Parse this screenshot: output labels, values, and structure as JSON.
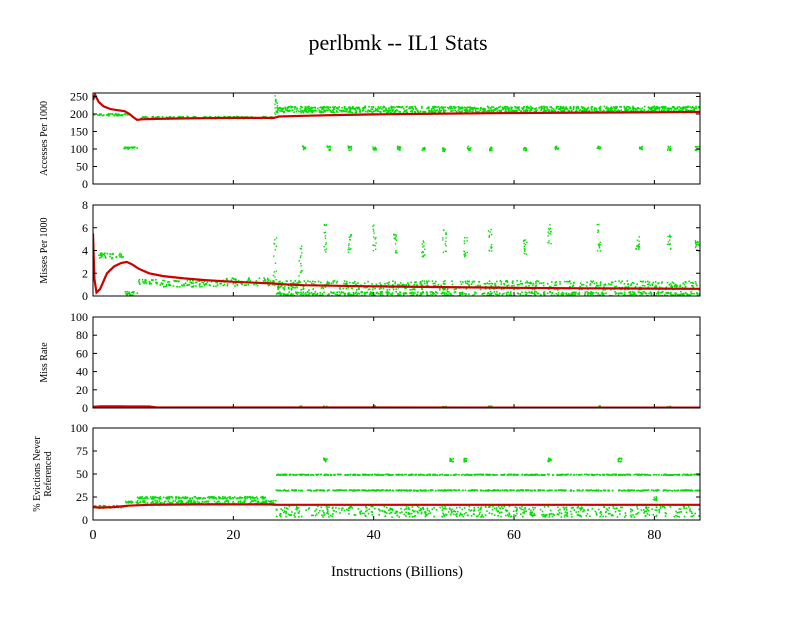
{
  "chart_data": {
    "type": "scatter",
    "title": "perlbmk -- IL1  Stats",
    "xlabel": "Instructions (Billions)",
    "x_ticks": [
      "0",
      "20",
      "40",
      "60",
      "80"
    ],
    "x_tick_values": [
      0,
      20,
      40,
      60,
      80
    ],
    "xlim": [
      0,
      86.5
    ],
    "colors": {
      "scatter": "#00dd00",
      "average": "#cc0000",
      "axis": "#000000"
    },
    "panels": [
      {
        "ylabel_lines": [
          "Accesses Per 1000"
        ],
        "ylim": [
          0,
          260
        ],
        "y_ticks": [
          0,
          50,
          100,
          150,
          200,
          250
        ],
        "y_tick_labels": [
          "0",
          "50",
          "100",
          "150",
          "200",
          "250"
        ],
        "scatter_segments": [
          {
            "x0": 0,
            "x1": 5,
            "y": 200,
            "spread": 3
          },
          {
            "x0": 4.3,
            "x1": 6.2,
            "y": 105,
            "spread": 3
          },
          {
            "x0": 6.5,
            "x1": 25.8,
            "y": 192,
            "spread": 3
          },
          {
            "x0": 26,
            "x1": 86.5,
            "y": 220,
            "spread": 4
          },
          {
            "x0": 26,
            "x1": 86.5,
            "y": 210,
            "spread": 4
          }
        ],
        "scatter_spikes": [
          {
            "x": 30,
            "y0": 100,
            "y1": 115
          },
          {
            "x": 33.5,
            "y0": 98,
            "y1": 110
          },
          {
            "x": 36.5,
            "y0": 98,
            "y1": 110
          },
          {
            "x": 40,
            "y0": 98,
            "y1": 108
          },
          {
            "x": 43.5,
            "y0": 96,
            "y1": 110
          },
          {
            "x": 47,
            "y0": 98,
            "y1": 108
          },
          {
            "x": 50,
            "y0": 95,
            "y1": 105
          },
          {
            "x": 53.5,
            "y0": 98,
            "y1": 110
          },
          {
            "x": 56.5,
            "y0": 96,
            "y1": 108
          },
          {
            "x": 61.5,
            "y0": 96,
            "y1": 108
          },
          {
            "x": 66,
            "y0": 98,
            "y1": 110
          },
          {
            "x": 72,
            "y0": 98,
            "y1": 110
          },
          {
            "x": 78,
            "y0": 100,
            "y1": 110
          },
          {
            "x": 82,
            "y0": 98,
            "y1": 110
          },
          {
            "x": 86,
            "y0": 98,
            "y1": 110
          },
          {
            "x": 26,
            "y0": 195,
            "y1": 255
          }
        ],
        "average": {
          "x": [
            0,
            0.3,
            0.8,
            1.5,
            2.5,
            3.5,
            4.5,
            5.2,
            5.8,
            6.3,
            7,
            9,
            12,
            16,
            20,
            25.8,
            26.5,
            30,
            35,
            40,
            50,
            60,
            70,
            80,
            86.5
          ],
          "y": [
            240,
            255,
            235,
            222,
            214,
            211,
            208,
            200,
            190,
            183,
            185,
            186,
            187,
            188,
            189,
            189,
            193,
            195,
            197,
            199,
            201,
            203,
            204,
            205,
            206
          ]
        }
      },
      {
        "ylabel_lines": [
          "Misses Per 1000"
        ],
        "ylim": [
          0,
          8
        ],
        "y_ticks": [
          0,
          2,
          4,
          6,
          8
        ],
        "y_tick_labels": [
          "0",
          "2",
          "4",
          "6",
          "8"
        ],
        "scatter_segments": [
          {
            "x0": 0.5,
            "x1": 4.3,
            "y": 3.6,
            "spread": 0.25
          },
          {
            "x0": 4.4,
            "x1": 6.3,
            "y": 0.3,
            "spread": 0.15
          },
          {
            "x0": 6.3,
            "x1": 9,
            "y": 1.3,
            "spread": 0.25
          },
          {
            "x0": 9,
            "x1": 18,
            "y": 1.15,
            "spread": 0.3
          },
          {
            "x0": 18,
            "x1": 25.8,
            "y": 1.3,
            "spread": 0.35
          },
          {
            "x0": 26,
            "x1": 86.5,
            "y": 0.25,
            "spread": 0.2
          },
          {
            "x0": 26,
            "x1": 86.5,
            "y": 1.0,
            "spread": 0.4
          }
        ],
        "scatter_spikes": [
          {
            "x": 25.8,
            "y0": 1.0,
            "y1": 5.5
          },
          {
            "x": 29.5,
            "y0": 1.5,
            "y1": 4.5
          },
          {
            "x": 33,
            "y0": 3.5,
            "y1": 6.5
          },
          {
            "x": 36.5,
            "y0": 3.5,
            "y1": 5.5
          },
          {
            "x": 40,
            "y0": 3.8,
            "y1": 6.5
          },
          {
            "x": 43,
            "y0": 3.8,
            "y1": 5.5
          },
          {
            "x": 47,
            "y0": 3.5,
            "y1": 5.0
          },
          {
            "x": 50,
            "y0": 3.8,
            "y1": 6.0
          },
          {
            "x": 53,
            "y0": 3.5,
            "y1": 5.5
          },
          {
            "x": 56.5,
            "y0": 4.0,
            "y1": 6.0
          },
          {
            "x": 61.5,
            "y0": 3.5,
            "y1": 5.0
          },
          {
            "x": 65,
            "y0": 4.5,
            "y1": 6.5
          },
          {
            "x": 72,
            "y0": 4.0,
            "y1": 6.5
          },
          {
            "x": 77.5,
            "y0": 4.0,
            "y1": 5.5
          },
          {
            "x": 82,
            "y0": 4.0,
            "y1": 5.5
          },
          {
            "x": 86,
            "y0": 4.0,
            "y1": 5.0
          }
        ],
        "average": {
          "x": [
            0,
            0.2,
            0.5,
            1,
            2,
            3,
            4,
            4.8,
            5.5,
            6.5,
            8,
            10,
            13,
            16,
            20,
            25.8,
            26.5,
            30,
            35,
            40,
            50,
            60,
            70,
            80,
            86.5
          ],
          "y": [
            5.5,
            1.5,
            0.3,
            0.6,
            2.0,
            2.6,
            2.9,
            3.0,
            2.8,
            2.4,
            2.0,
            1.75,
            1.55,
            1.4,
            1.25,
            1.1,
            1.05,
            0.95,
            0.9,
            0.85,
            0.78,
            0.72,
            0.68,
            0.65,
            0.63
          ]
        }
      },
      {
        "ylabel_lines": [
          "Miss Rate"
        ],
        "ylim": [
          0,
          100
        ],
        "y_ticks": [
          0,
          20,
          40,
          60,
          80,
          100
        ],
        "y_tick_labels": [
          "0",
          "20",
          "40",
          "60",
          "80",
          "100"
        ],
        "scatter_segments": [
          {
            "x0": 0,
            "x1": 8,
            "y": 1.5,
            "spread": 0.5
          },
          {
            "x0": 8,
            "x1": 86.5,
            "y": 0.6,
            "spread": 0.4
          }
        ],
        "scatter_spikes": [
          {
            "x": 29.5,
            "y0": 1,
            "y1": 3
          },
          {
            "x": 33,
            "y0": 1,
            "y1": 3
          },
          {
            "x": 40,
            "y0": 1,
            "y1": 3
          },
          {
            "x": 50,
            "y0": 1,
            "y1": 3
          },
          {
            "x": 56.5,
            "y0": 1,
            "y1": 3
          },
          {
            "x": 72,
            "y0": 1,
            "y1": 3
          },
          {
            "x": 82,
            "y0": 1,
            "y1": 3
          }
        ],
        "average": {
          "x": [
            0,
            1,
            4,
            8,
            9,
            20,
            40,
            60,
            86.5
          ],
          "y": [
            1.2,
            1.8,
            1.8,
            1.6,
            0.7,
            0.6,
            0.5,
            0.45,
            0.45
          ]
        }
      },
      {
        "ylabel_lines": [
          "% Evictions Never",
          "Referenced"
        ],
        "ylim": [
          0,
          100
        ],
        "y_ticks": [
          0,
          25,
          50,
          75,
          100
        ],
        "y_tick_labels": [
          "0",
          "25",
          "50",
          "75",
          "100"
        ],
        "scatter_segments": [
          {
            "x0": 0,
            "x1": 4.5,
            "y": 15,
            "spread": 1.5
          },
          {
            "x0": 4.5,
            "x1": 6.2,
            "y": 20,
            "spread": 1
          },
          {
            "x0": 6.2,
            "x1": 24.5,
            "y": 25,
            "spread": 1.2
          },
          {
            "x0": 6.2,
            "x1": 24.5,
            "y": 20,
            "spread": 2
          },
          {
            "x0": 24.5,
            "x1": 26,
            "y": 20,
            "spread": 2
          },
          {
            "x0": 26,
            "x1": 86.5,
            "y": 50,
            "spread": 0.5
          },
          {
            "x0": 26,
            "x1": 86.5,
            "y": 33,
            "spread": 0.5
          },
          {
            "x0": 26,
            "x1": 86.5,
            "y": 10,
            "spread": 6
          }
        ],
        "scatter_spikes": [
          {
            "x": 33,
            "y0": 64,
            "y1": 68
          },
          {
            "x": 51,
            "y0": 64,
            "y1": 68
          },
          {
            "x": 53,
            "y0": 64,
            "y1": 68
          },
          {
            "x": 65,
            "y0": 64,
            "y1": 68
          },
          {
            "x": 75,
            "y0": 64,
            "y1": 68
          },
          {
            "x": 80,
            "y0": 22,
            "y1": 26
          }
        ],
        "average": {
          "x": [
            0,
            1,
            3,
            5,
            8,
            15,
            25,
            26,
            30,
            40,
            60,
            86.5
          ],
          "y": [
            14,
            13.5,
            14,
            15.5,
            16.5,
            17,
            17,
            16.5,
            16.5,
            16.5,
            16.5,
            16.5
          ]
        }
      }
    ]
  }
}
